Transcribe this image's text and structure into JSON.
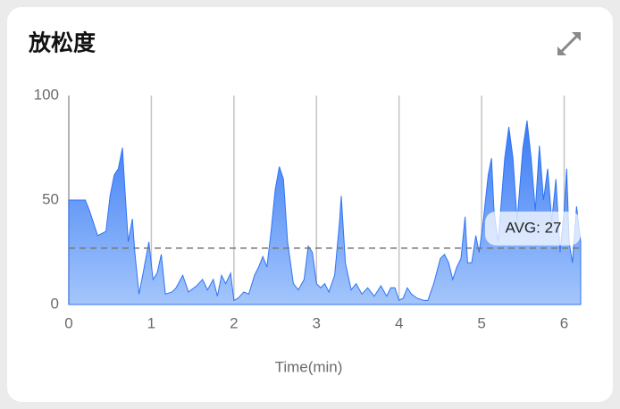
{
  "chart_data": {
    "type": "area",
    "title": "放松度",
    "xlabel": "Time(min)",
    "xlim": [
      0,
      6.2
    ],
    "ylim": [
      0,
      100
    ],
    "xticks": [
      0,
      1,
      2,
      3,
      4,
      5,
      6
    ],
    "yticks": [
      0,
      50,
      100
    ],
    "color": "#2f74f5",
    "average": {
      "value": 27,
      "label": "AVG: 27"
    },
    "x": [
      0,
      0.2,
      0.25,
      0.35,
      0.45,
      0.5,
      0.55,
      0.6,
      0.65,
      0.68,
      0.72,
      0.77,
      0.8,
      0.85,
      0.9,
      0.97,
      1.02,
      1.07,
      1.12,
      1.17,
      1.25,
      1.3,
      1.38,
      1.45,
      1.55,
      1.62,
      1.68,
      1.75,
      1.8,
      1.85,
      1.9,
      1.96,
      2.0,
      2.05,
      2.12,
      2.18,
      2.25,
      2.3,
      2.35,
      2.4,
      2.45,
      2.5,
      2.55,
      2.6,
      2.65,
      2.72,
      2.78,
      2.85,
      2.9,
      2.95,
      3.0,
      3.05,
      3.1,
      3.15,
      3.22,
      3.28,
      3.3,
      3.35,
      3.42,
      3.48,
      3.55,
      3.62,
      3.7,
      3.78,
      3.85,
      3.9,
      3.95,
      4.0,
      4.05,
      4.1,
      4.15,
      4.22,
      4.3,
      4.35,
      4.42,
      4.5,
      4.55,
      4.6,
      4.65,
      4.7,
      4.75,
      4.8,
      4.83,
      4.88,
      4.93,
      4.97,
      5.02,
      5.08,
      5.12,
      5.15,
      5.2,
      5.28,
      5.33,
      5.38,
      5.43,
      5.5,
      5.55,
      5.6,
      5.65,
      5.7,
      5.75,
      5.8,
      5.85,
      5.9,
      5.95,
      6.0,
      6.03,
      6.06,
      6.1,
      6.15,
      6.2
    ],
    "values": [
      50,
      50,
      45,
      33,
      35,
      52,
      62,
      65,
      75,
      55,
      30,
      41,
      25,
      5,
      15,
      30,
      12,
      15,
      24,
      5,
      6,
      8,
      14,
      6,
      9,
      12,
      7,
      12,
      4,
      14,
      10,
      15,
      2,
      3,
      6,
      5,
      14,
      18,
      23,
      18,
      35,
      55,
      66,
      60,
      30,
      10,
      7,
      12,
      28,
      25,
      10,
      8,
      10,
      6,
      14,
      40,
      52,
      20,
      7,
      10,
      5,
      8,
      4,
      9,
      4,
      8,
      8,
      2,
      3,
      8,
      5,
      3,
      2,
      2,
      10,
      22,
      24,
      20,
      12,
      18,
      22,
      42,
      20,
      20,
      33,
      25,
      40,
      62,
      70,
      45,
      30,
      70,
      85,
      70,
      40,
      75,
      88,
      70,
      45,
      76,
      50,
      65,
      40,
      60,
      25,
      45,
      65,
      30,
      20,
      47,
      30
    ]
  }
}
